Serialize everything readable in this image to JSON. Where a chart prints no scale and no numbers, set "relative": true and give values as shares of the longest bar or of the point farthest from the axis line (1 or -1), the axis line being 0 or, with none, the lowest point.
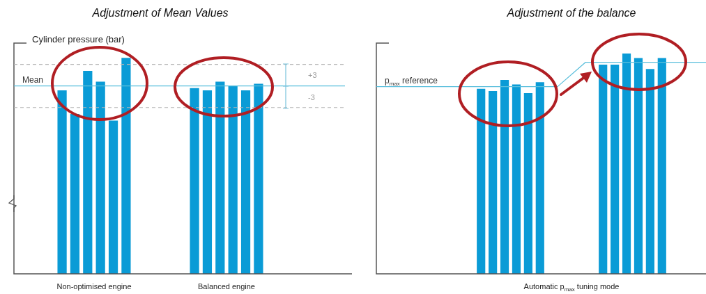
{
  "chart_data": [
    {
      "type": "bar",
      "title": "Adjustment of Mean Values",
      "ylabel": "Cylinder pressure (bar)",
      "categories": [
        "Non-optimised engine",
        "Balanced engine"
      ],
      "relative": true,
      "series": [
        {
          "color": "#0a9bd6",
          "values": [
            0.85,
            0.86
          ]
        },
        {
          "color": "#0a9bd6",
          "values": [
            0.74,
            0.85
          ]
        },
        {
          "color": "#0a9bd6",
          "values": [
            0.94,
            0.89
          ]
        },
        {
          "color": "#0a9bd6",
          "values": [
            0.89,
            0.87
          ]
        },
        {
          "color": "#0a9bd6",
          "values": [
            0.71,
            0.85
          ]
        },
        {
          "color": "#0a9bd6",
          "values": [
            1,
            0.88
          ]
        }
      ],
      "ref_lines": [
        {
          "axis": "y",
          "value": 0.87,
          "label": "Mean",
          "color": "#5bbfdc"
        },
        {
          "axis": "y",
          "value": 0.97,
          "color": "#b5b5b5",
          "line_style": "dashed"
        },
        {
          "axis": "y",
          "value": 0.77,
          "color": "#b5b5b5",
          "line_style": "dashed"
        }
      ],
      "annotations": [
        "+3",
        "-3"
      ]
    },
    {
      "type": "bar",
      "title": "Adjustment of the balance",
      "xlabel": "Automatic p$_{max}$ tuning mode",
      "categories": [
        null,
        null
      ],
      "relative": true,
      "series": [
        {
          "color": "#0a9bd6",
          "values": [
            0.84,
            0.95
          ]
        },
        {
          "color": "#0a9bd6",
          "values": [
            0.83,
            0.95
          ]
        },
        {
          "color": "#0a9bd6",
          "values": [
            0.88,
            1
          ]
        },
        {
          "color": "#0a9bd6",
          "values": [
            0.86,
            0.98
          ]
        },
        {
          "color": "#0a9bd6",
          "values": [
            0.82,
            0.93
          ]
        },
        {
          "color": "#0a9bd6",
          "values": [
            0.87,
            0.98
          ]
        }
      ],
      "ref_lines": [
        {
          "axis": "y",
          "value": 0.85,
          "label": "p$_{max}$ reference",
          "color": "#5bbfdc"
        },
        {
          "axis": "y",
          "value": 0.96,
          "color": "#5bbfdc"
        }
      ]
    }
  ]
}
